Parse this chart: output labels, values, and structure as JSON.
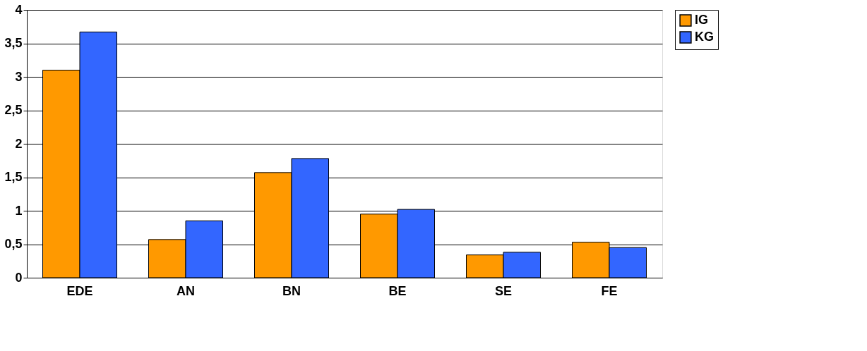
{
  "chart_data": {
    "type": "bar",
    "categories": [
      "EDE",
      "AN",
      "BN",
      "BE",
      "SE",
      "FE"
    ],
    "series": [
      {
        "name": "IG",
        "color": "#ff9900",
        "values": [
          3.1,
          0.57,
          1.57,
          0.95,
          0.34,
          0.53
        ]
      },
      {
        "name": "KG",
        "color": "#3366ff",
        "values": [
          3.67,
          0.85,
          1.78,
          1.02,
          0.38,
          0.45
        ]
      }
    ],
    "ylim": [
      0,
      4
    ],
    "yticks": [
      0,
      {
        "value": 0.5,
        "label": "0,5"
      },
      1,
      {
        "value": 1.5,
        "label": "1,5"
      },
      2,
      {
        "value": 2.5,
        "label": "2,5"
      },
      3,
      {
        "value": 3.5,
        "label": "3,5"
      },
      4
    ],
    "grid": "y",
    "legend": "right"
  }
}
